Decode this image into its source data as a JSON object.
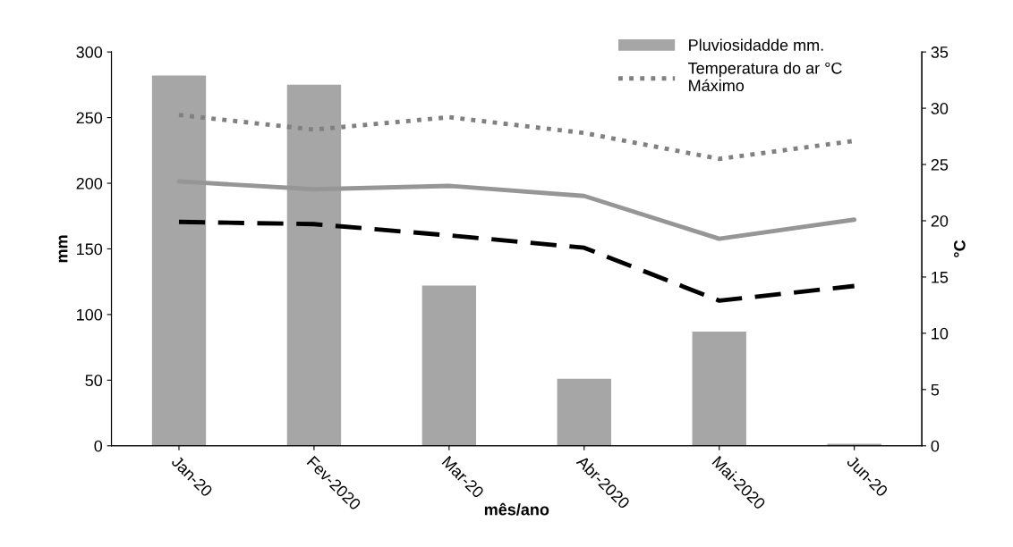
{
  "chart_data": {
    "type": "bar",
    "xlabel": "mês/ano",
    "ylabel": "mm",
    "y2label": "°C",
    "categories": [
      "Jan-20",
      "Fev-2020",
      "Mar-20",
      "Abr-2020",
      "Mai-2020",
      "Jun-20"
    ],
    "series": [
      {
        "name": "Pluviosidadde mm.",
        "color": "#a6a6a6",
        "values": [
          282,
          275,
          122,
          51,
          87,
          1.5
        ]
      },
      {
        "name": "Temperatura do ar °C\nMáximo",
        "type": "line",
        "axis": "y2",
        "line_style": "dotted",
        "color": "#808080",
        "values": [
          29.4,
          28.1,
          29.2,
          27.8,
          25.5,
          27.1
        ]
      },
      {
        "type": "line",
        "axis": "y2",
        "line_style": "solid",
        "color": "#969696",
        "values": [
          23.5,
          22.8,
          23.1,
          22.2,
          18.4,
          20.1
        ]
      },
      {
        "type": "line",
        "axis": "y2",
        "line_style": "dashed",
        "color": "#000000",
        "values": [
          19.9,
          19.7,
          18.7,
          17.6,
          12.9,
          14.2
        ]
      }
    ],
    "ylim": [
      0,
      300
    ],
    "yticks": [
      0,
      50,
      100,
      150,
      200,
      250,
      300
    ],
    "y2lim": [
      0,
      35
    ],
    "y2ticks": [
      0,
      5,
      10,
      15,
      20,
      25,
      30,
      35
    ],
    "legend": "top right",
    "grid": false
  }
}
